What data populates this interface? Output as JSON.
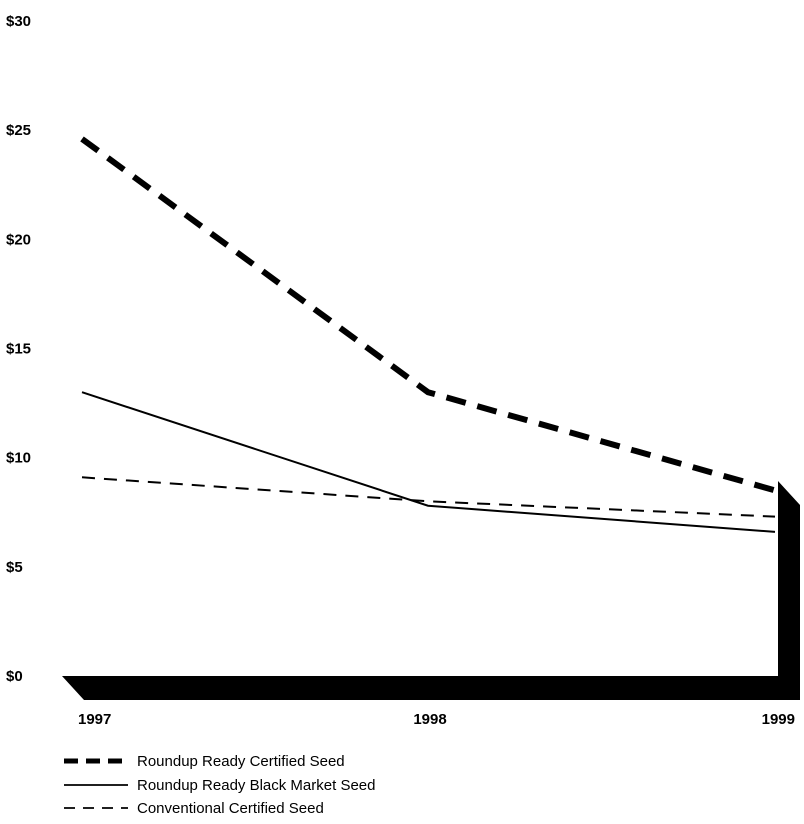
{
  "chart_data": {
    "type": "line",
    "title": "",
    "xlabel": "",
    "ylabel": "",
    "x": [
      "1997",
      "1998",
      "1999"
    ],
    "ylim": [
      0,
      30
    ],
    "yticks": [
      {
        "value": 30,
        "label": "$30"
      },
      {
        "value": 25,
        "label": "$25"
      },
      {
        "value": 20,
        "label": "$20"
      },
      {
        "value": 15,
        "label": "$15"
      },
      {
        "value": 10,
        "label": "$10"
      },
      {
        "value": 5,
        "label": "$5"
      },
      {
        "value": 0,
        "label": "$0"
      }
    ],
    "grid": false,
    "legend_position": "bottom-left",
    "series": [
      {
        "name": "Roundup Ready Certified Seed",
        "values": [
          24.6,
          13.0,
          8.5
        ],
        "style": "heavy-dashed",
        "color": "#000000"
      },
      {
        "name": "Roundup Ready Black Market Seed",
        "values": [
          13.0,
          7.8,
          6.6
        ],
        "style": "solid",
        "color": "#000000"
      },
      {
        "name": "Conventional Certified Seed",
        "values": [
          9.1,
          8.0,
          7.3
        ],
        "style": "thin-dashed",
        "color": "#000000"
      }
    ]
  }
}
